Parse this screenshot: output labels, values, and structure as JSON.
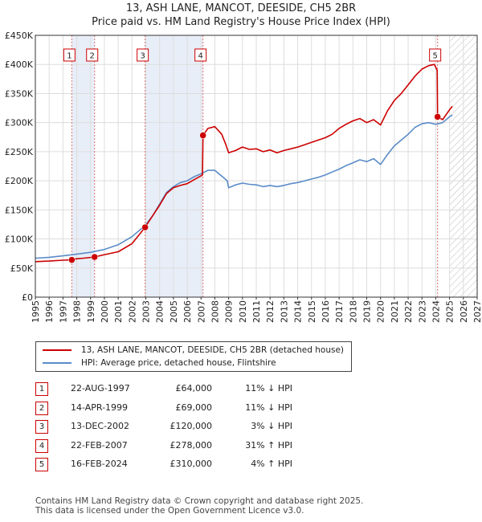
{
  "title": {
    "line1": "13, ASH LANE, MANCOT, DEESIDE, CH5 2BR",
    "line2": "Price paid vs. HM Land Registry's House Price Index (HPI)"
  },
  "colors": {
    "price_line": "#cc0000",
    "hpi_line": "#5b8cc8",
    "shade": "#e8eef8",
    "marker": "#cc0000"
  },
  "legend": {
    "price_label": "13, ASH LANE, MANCOT, DEESIDE, CH5 2BR (detached house)",
    "hpi_label": "HPI: Average price, detached house, Flintshire"
  },
  "chart_data": {
    "type": "line",
    "xlim": [
      1995,
      2027
    ],
    "ylim": [
      0,
      450000
    ],
    "x_ticks": [
      1995,
      1996,
      1997,
      1998,
      1999,
      2000,
      2001,
      2002,
      2003,
      2004,
      2005,
      2006,
      2007,
      2008,
      2009,
      2010,
      2011,
      2012,
      2013,
      2014,
      2015,
      2016,
      2017,
      2018,
      2019,
      2020,
      2021,
      2022,
      2023,
      2024,
      2025,
      2026,
      2027
    ],
    "y_ticks": [
      0,
      50000,
      100000,
      150000,
      200000,
      250000,
      300000,
      350000,
      400000,
      450000
    ],
    "y_tick_labels": [
      "£0",
      "£50K",
      "£100K",
      "£150K",
      "£200K",
      "£250K",
      "£300K",
      "£350K",
      "£400K",
      "£450K"
    ],
    "hatch_from": 2025.0,
    "shaded_ranges": [
      [
        1997.64,
        1999.29
      ],
      [
        2002.95,
        2007.14
      ]
    ],
    "series": [
      {
        "name": "13, ASH LANE, MANCOT, DEESIDE, CH5 2BR (detached house)",
        "points": [
          [
            1995,
            61000
          ],
          [
            1996,
            62000
          ],
          [
            1997,
            63500
          ],
          [
            1997.64,
            64000
          ],
          [
            1998,
            66000
          ],
          [
            1998.5,
            67000
          ],
          [
            1999.29,
            69000
          ],
          [
            2000,
            73000
          ],
          [
            2001,
            78000
          ],
          [
            2002,
            92000
          ],
          [
            2002.95,
            120000
          ],
          [
            2003.5,
            140000
          ],
          [
            2004,
            158000
          ],
          [
            2004.5,
            178000
          ],
          [
            2005,
            188000
          ],
          [
            2005.5,
            192000
          ],
          [
            2006,
            195000
          ],
          [
            2006.5,
            202000
          ],
          [
            2007.1,
            210000
          ],
          [
            2007.14,
            278000
          ],
          [
            2007.5,
            290000
          ],
          [
            2008,
            293000
          ],
          [
            2008.5,
            280000
          ],
          [
            2008.8,
            262000
          ],
          [
            2009,
            248000
          ],
          [
            2009.5,
            252000
          ],
          [
            2010,
            258000
          ],
          [
            2010.5,
            254000
          ],
          [
            2011,
            255000
          ],
          [
            2011.5,
            250000
          ],
          [
            2012,
            253000
          ],
          [
            2012.5,
            248000
          ],
          [
            2013,
            252000
          ],
          [
            2013.5,
            255000
          ],
          [
            2014,
            258000
          ],
          [
            2014.5,
            262000
          ],
          [
            2015,
            266000
          ],
          [
            2015.5,
            270000
          ],
          [
            2016,
            274000
          ],
          [
            2016.5,
            280000
          ],
          [
            2017,
            290000
          ],
          [
            2017.5,
            297000
          ],
          [
            2018,
            303000
          ],
          [
            2018.5,
            307000
          ],
          [
            2019,
            300000
          ],
          [
            2019.5,
            305000
          ],
          [
            2020,
            296000
          ],
          [
            2020.5,
            320000
          ],
          [
            2021,
            338000
          ],
          [
            2021.5,
            350000
          ],
          [
            2022,
            365000
          ],
          [
            2022.5,
            380000
          ],
          [
            2023,
            392000
          ],
          [
            2023.5,
            398000
          ],
          [
            2023.9,
            400000
          ],
          [
            2024.1,
            390000
          ],
          [
            2024.13,
            310000
          ],
          [
            2024.5,
            305000
          ],
          [
            2025,
            322000
          ],
          [
            2025.2,
            328000
          ]
        ]
      },
      {
        "name": "HPI: Average price, detached house, Flintshire",
        "points": [
          [
            1995,
            67000
          ],
          [
            1996,
            68500
          ],
          [
            1997,
            71000
          ],
          [
            1998,
            74000
          ],
          [
            1999,
            77000
          ],
          [
            2000,
            82000
          ],
          [
            2001,
            90000
          ],
          [
            2002,
            104000
          ],
          [
            2002.95,
            123000
          ],
          [
            2003.5,
            140000
          ],
          [
            2004,
            160000
          ],
          [
            2004.5,
            180000
          ],
          [
            2005,
            190000
          ],
          [
            2005.5,
            197000
          ],
          [
            2006,
            200000
          ],
          [
            2006.5,
            207000
          ],
          [
            2007,
            212000
          ],
          [
            2007.5,
            218000
          ],
          [
            2008,
            218000
          ],
          [
            2008.5,
            208000
          ],
          [
            2008.9,
            200000
          ],
          [
            2009,
            188000
          ],
          [
            2009.5,
            193000
          ],
          [
            2010,
            196000
          ],
          [
            2010.5,
            194000
          ],
          [
            2011,
            193000
          ],
          [
            2011.5,
            190000
          ],
          [
            2012,
            192000
          ],
          [
            2012.5,
            190000
          ],
          [
            2013,
            192000
          ],
          [
            2013.5,
            195000
          ],
          [
            2014,
            197000
          ],
          [
            2014.5,
            200000
          ],
          [
            2015,
            203000
          ],
          [
            2015.5,
            206000
          ],
          [
            2016,
            210000
          ],
          [
            2016.5,
            215000
          ],
          [
            2017,
            220000
          ],
          [
            2017.5,
            226000
          ],
          [
            2018,
            231000
          ],
          [
            2018.5,
            236000
          ],
          [
            2019,
            233000
          ],
          [
            2019.5,
            238000
          ],
          [
            2020,
            228000
          ],
          [
            2020.5,
            245000
          ],
          [
            2021,
            260000
          ],
          [
            2021.5,
            270000
          ],
          [
            2022,
            280000
          ],
          [
            2022.5,
            292000
          ],
          [
            2023,
            298000
          ],
          [
            2023.5,
            300000
          ],
          [
            2024,
            297000
          ],
          [
            2024.5,
            300000
          ],
          [
            2025,
            310000
          ],
          [
            2025.2,
            313000
          ]
        ]
      }
    ],
    "sales": [
      {
        "label": "1",
        "x": 1997.64,
        "y": 64000
      },
      {
        "label": "2",
        "x": 1999.29,
        "y": 69000
      },
      {
        "label": "3",
        "x": 2002.95,
        "y": 120000
      },
      {
        "label": "4",
        "x": 2007.14,
        "y": 278000
      },
      {
        "label": "5",
        "x": 2024.13,
        "y": 310000
      }
    ]
  },
  "sales_table": [
    {
      "num": "1",
      "date": "22-AUG-1997",
      "price": "£64,000",
      "hpi": "11% ↓ HPI"
    },
    {
      "num": "2",
      "date": "14-APR-1999",
      "price": "£69,000",
      "hpi": "11% ↓ HPI"
    },
    {
      "num": "3",
      "date": "13-DEC-2002",
      "price": "£120,000",
      "hpi": "3% ↓ HPI"
    },
    {
      "num": "4",
      "date": "22-FEB-2007",
      "price": "£278,000",
      "hpi": "31% ↑ HPI"
    },
    {
      "num": "5",
      "date": "16-FEB-2024",
      "price": "£310,000",
      "hpi": "4% ↑ HPI"
    }
  ],
  "footer": {
    "line1": "Contains HM Land Registry data © Crown copyright and database right 2025.",
    "line2": "This data is licensed under the Open Government Licence v3.0."
  }
}
